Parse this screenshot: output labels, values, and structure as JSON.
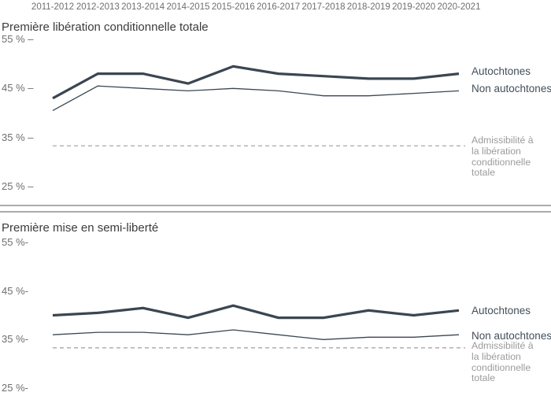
{
  "colors": {
    "series_line": "#3b4652",
    "reference_line": "#a7a7a7",
    "axis_text": "#6f6f6f",
    "title_text": "#3b3b3b",
    "legend_text": "#434e59",
    "reference_text": "#9b9b9b",
    "divider": "#ababab",
    "background": "#ffffff"
  },
  "x_axis": {
    "categories": [
      "2011-2012",
      "2012-2013",
      "2013-2014",
      "2014-2015",
      "2015-2016",
      "2016-2017",
      "2017-2018",
      "2018-2019",
      "2019-2020",
      "2020-2021"
    ]
  },
  "chart_data": [
    {
      "type": "line",
      "title": "Première libération conditionnelle totale",
      "categories": [
        "2011-2012",
        "2012-2013",
        "2013-2014",
        "2014-2015",
        "2015-2016",
        "2016-2017",
        "2017-2018",
        "2018-2019",
        "2019-2020",
        "2020-2021"
      ],
      "series": [
        {
          "name": "Autochtones",
          "style": "thick",
          "values": [
            43,
            48,
            48,
            46,
            49.5,
            48,
            47.5,
            47,
            47,
            48
          ]
        },
        {
          "name": "Non autochtones",
          "style": "thin",
          "values": [
            40.5,
            45.5,
            45,
            44.5,
            45,
            44.5,
            43.5,
            43.5,
            44,
            44.5
          ]
        }
      ],
      "reference_line": {
        "value": 33.3,
        "style": "dashed",
        "label": "Admissibilité à la libération conditionnelle totale"
      },
      "ylabel": "",
      "xlabel": "",
      "ylim": [
        25,
        57
      ],
      "y_tick_values": [
        55,
        45,
        35,
        25
      ],
      "y_tick_labels": [
        "55 % –",
        "45 % –",
        "35 % –",
        "25 % –"
      ],
      "grid": false,
      "legend_position": "right"
    },
    {
      "type": "line",
      "title": "Première mise en semi-liberté",
      "categories": [
        "2011-2012",
        "2012-2013",
        "2013-2014",
        "2014-2015",
        "2015-2016",
        "2016-2017",
        "2017-2018",
        "2018-2019",
        "2019-2020",
        "2020-2021"
      ],
      "series": [
        {
          "name": "Autochtones",
          "style": "thick",
          "values": [
            40,
            40.5,
            41.5,
            39.5,
            42,
            39.5,
            39.5,
            41,
            40,
            41
          ]
        },
        {
          "name": "Non autochtones",
          "style": "thin",
          "values": [
            36,
            36.5,
            36.5,
            36,
            37,
            36,
            35,
            35.5,
            35.5,
            36
          ]
        }
      ],
      "reference_line": {
        "value": 33.3,
        "style": "dashed",
        "label": "Admissibilité à la libération conditionnelle totale"
      },
      "ylabel": "",
      "xlabel": "",
      "ylim": [
        25,
        57
      ],
      "y_tick_values": [
        55,
        45,
        35,
        25
      ],
      "y_tick_labels": [
        "55 %-",
        "45 %-",
        "35 %-",
        "25 %-"
      ],
      "grid": false,
      "legend_position": "right"
    }
  ]
}
